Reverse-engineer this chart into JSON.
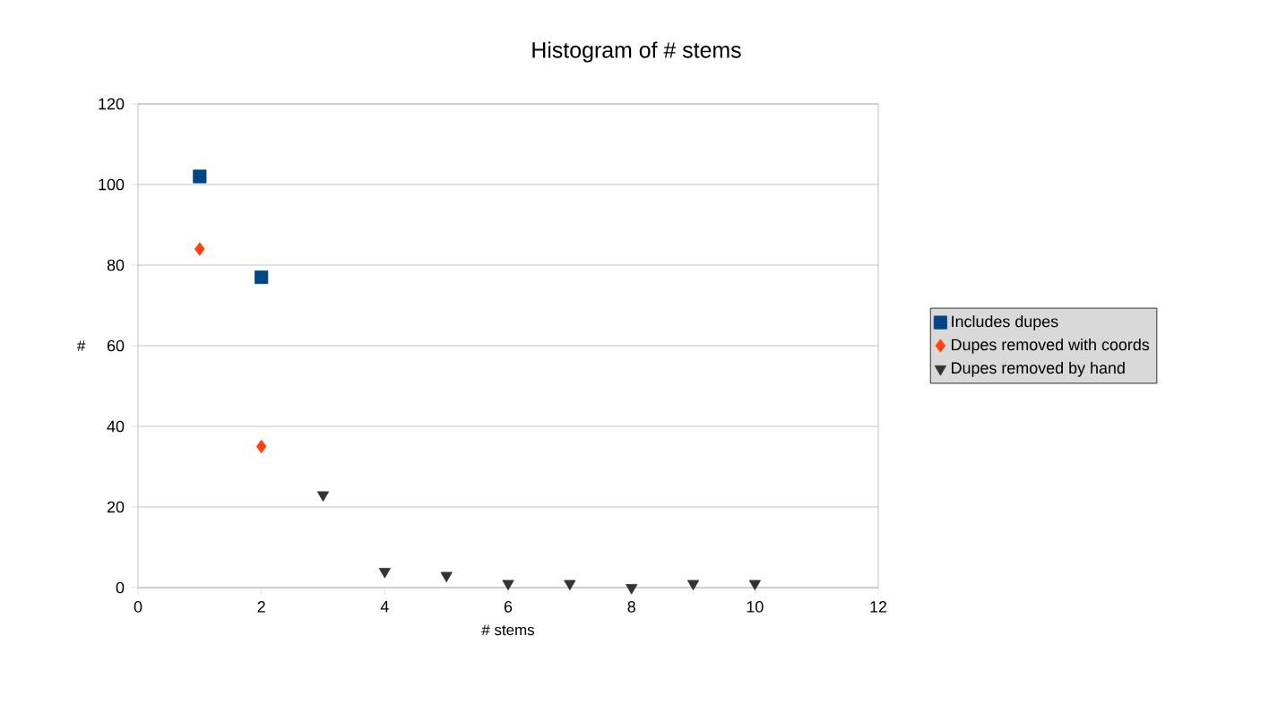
{
  "chart_data": {
    "type": "scatter",
    "title": "Histogram of # stems",
    "xlabel": "# stems",
    "ylabel": "#",
    "xlim": [
      0,
      12
    ],
    "xticks": [
      0,
      2,
      4,
      6,
      8,
      10,
      12
    ],
    "ylim": [
      0,
      120
    ],
    "yticks": [
      0,
      20,
      40,
      60,
      80,
      100,
      120
    ],
    "grid": "y",
    "legend": "right",
    "series": [
      {
        "name": "Includes dupes",
        "color": "#004586",
        "marker": "square",
        "x": [
          1,
          2
        ],
        "values": [
          102,
          77
        ]
      },
      {
        "name": "Dupes removed with coords",
        "color": "#ff420e",
        "marker": "diamond",
        "x": [
          1,
          2
        ],
        "values": [
          84,
          35
        ]
      },
      {
        "name": "Dupes removed by hand",
        "color": "#333333",
        "marker": "triangle",
        "x": [
          3,
          4,
          5,
          6,
          7,
          8,
          9,
          10
        ],
        "values": [
          23,
          4,
          3,
          1,
          1,
          0,
          1,
          1
        ]
      }
    ]
  }
}
